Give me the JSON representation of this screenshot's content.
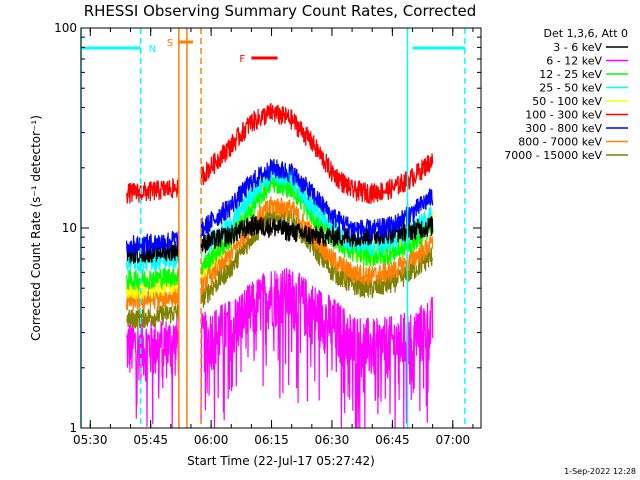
{
  "chart_data": {
    "type": "line",
    "title": "RHESSI Observing Summary Count Rates, Corrected",
    "xlabel": "Start Time (22-Jul-17 05:27:42)",
    "ylabel": "Corrected Count Rate (s⁻¹ detector⁻¹)",
    "y_scale": "log",
    "ylim": [
      1,
      100
    ],
    "xlim": [
      "05:27:42",
      "07:07:00"
    ],
    "x_ticks": [
      "05:30",
      "05:45",
      "06:00",
      "06:15",
      "06:30",
      "06:45",
      "07:00"
    ],
    "y_ticks": [
      "1",
      "10",
      "100"
    ],
    "legend": {
      "header": "Det 1,3,6, Att 0",
      "placement": "right"
    },
    "flags": [
      {
        "label": "N",
        "color": "#00ffff",
        "start": "05:27:42",
        "end": "05:42:30"
      },
      {
        "label": "S",
        "color": "#ff8000",
        "start": "05:52:00",
        "end": "05:55:30"
      },
      {
        "label": "F",
        "color": "#ff0000",
        "start": "06:10:00",
        "end": "06:16:30"
      },
      {
        "label": "",
        "color": "#00ffff",
        "start": "06:50:00",
        "end": "07:03:00"
      }
    ],
    "vlines": [
      {
        "time": "05:27:42",
        "color": "#00ffff",
        "dash": false
      },
      {
        "time": "05:42:30",
        "color": "#00ffff",
        "dash": true
      },
      {
        "time": "05:52:00",
        "color": "#ff8000",
        "dash": false
      },
      {
        "time": "05:54:00",
        "color": "#ff8000",
        "dash": false
      },
      {
        "time": "05:57:30",
        "color": "#ff8000",
        "dash": true
      },
      {
        "time": "06:48:45",
        "color": "#00ffff",
        "dash": false
      },
      {
        "time": "07:03:00",
        "color": "#00ffff",
        "dash": true
      }
    ],
    "segments": [
      {
        "start": "05:39:00",
        "end": "05:52:00"
      },
      {
        "start": "05:57:30",
        "end": "06:55:00"
      }
    ],
    "x_anchors": [
      "05:39",
      "05:45",
      "05:52",
      "05:58",
      "06:05",
      "06:10",
      "06:15",
      "06:20",
      "06:25",
      "06:30",
      "06:35",
      "06:40",
      "06:45",
      "06:50",
      "06:55"
    ],
    "series": [
      {
        "name": "3 - 6 keV",
        "color": "#000000",
        "values": [
          7.5,
          7.6,
          7.8,
          8.4,
          9.3,
          10.3,
          10.2,
          9.6,
          9.2,
          9.1,
          9.1,
          9.2,
          9.5,
          9.8,
          10.3
        ]
      },
      {
        "name": "6 - 12 keV",
        "color": "#ff00ff",
        "values": [
          2.6,
          2.6,
          2.7,
          2.8,
          3.3,
          4.0,
          4.8,
          4.7,
          4.0,
          3.4,
          2.8,
          2.6,
          2.7,
          2.9,
          3.4
        ]
      },
      {
        "name": "12 - 25 keV",
        "color": "#00ff00",
        "values": [
          5.5,
          5.6,
          5.8,
          6.5,
          9.0,
          12.5,
          17.0,
          16.0,
          11.5,
          9.0,
          7.6,
          7.2,
          7.5,
          8.5,
          10.5
        ]
      },
      {
        "name": "25 - 50 keV",
        "color": "#00ffff",
        "values": [
          6.8,
          6.9,
          7.1,
          8.0,
          10.5,
          14.5,
          19.0,
          18.0,
          13.0,
          10.0,
          8.4,
          8.0,
          8.4,
          9.6,
          12.0
        ]
      },
      {
        "name": "50 - 100 keV",
        "color": "#ffff00",
        "values": [
          4.9,
          5.0,
          5.3,
          6.2,
          9.0,
          13.5,
          20.0,
          19.0,
          13.0,
          9.5,
          7.9,
          7.5,
          7.9,
          9.0,
          11.0
        ]
      },
      {
        "name": "100 - 300 keV",
        "color": "#ff0000",
        "values": [
          15.0,
          15.3,
          16.0,
          18.5,
          26.0,
          34.0,
          38.0,
          35.0,
          27.0,
          19.0,
          15.5,
          15.0,
          15.8,
          18.0,
          22.0
        ]
      },
      {
        "name": "300 - 800 keV",
        "color": "#0000ff",
        "values": [
          8.2,
          8.4,
          8.8,
          10.0,
          13.0,
          17.0,
          20.0,
          19.0,
          15.0,
          11.5,
          10.0,
          9.8,
          10.3,
          12.0,
          14.5
        ]
      },
      {
        "name": "800 - 7000 keV",
        "color": "#ff8000",
        "values": [
          4.3,
          4.4,
          4.6,
          5.3,
          7.4,
          10.5,
          13.0,
          12.5,
          9.4,
          7.0,
          6.0,
          5.8,
          6.1,
          7.0,
          8.4
        ]
      },
      {
        "name": "7000 - 15000 keV",
        "color": "#808000",
        "values": [
          3.5,
          3.6,
          3.8,
          4.5,
          6.4,
          9.0,
          11.5,
          11.0,
          8.2,
          6.1,
          5.2,
          5.0,
          5.3,
          6.1,
          7.3
        ]
      }
    ]
  },
  "footer": {
    "timestamp": "1-Sep-2022 12:28"
  }
}
